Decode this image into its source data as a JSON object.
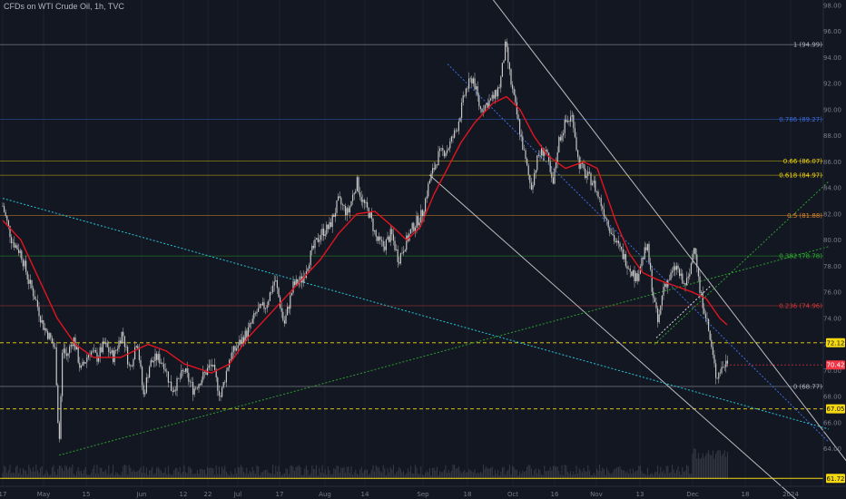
{
  "header": {
    "title": "CFDs on WTI Crude Oil, 1h, TVC"
  },
  "colors": {
    "background": "#131722",
    "grid": "#1e222d",
    "candle": "#c8c8c8",
    "ema": "#e0151f",
    "channel": "#d9d9d9",
    "fib_line": "#787b86",
    "cyan_trend": "#26c6da",
    "green_trend": "#2e9e2e",
    "price_badge": "#f23645",
    "level_badge": "#f5d80f"
  },
  "chart_data": {
    "type": "line",
    "title": "CFDs on WTI Crude Oil, 1h, TVC",
    "xlabel": "",
    "ylabel": "",
    "grid": false,
    "y_axis_position": "right",
    "ylim": [
      61.0,
      99.0
    ],
    "y_ticks": [
      64,
      66,
      68,
      70,
      72,
      74,
      76,
      78,
      80,
      82,
      84,
      86,
      88,
      90,
      92,
      94,
      96,
      98
    ],
    "x_ticks": [
      {
        "label": "17",
        "t": 0
      },
      {
        "label": "May",
        "t": 45
      },
      {
        "label": "15",
        "t": 92
      },
      {
        "label": "Jun",
        "t": 153
      },
      {
        "label": "12",
        "t": 199
      },
      {
        "label": "22",
        "t": 226
      },
      {
        "label": "Jul",
        "t": 259
      },
      {
        "label": "17",
        "t": 305
      },
      {
        "label": "Aug",
        "t": 355
      },
      {
        "label": "14",
        "t": 399
      },
      {
        "label": "Sep",
        "t": 463
      },
      {
        "label": "18",
        "t": 512
      },
      {
        "label": "Oct",
        "t": 562
      },
      {
        "label": "16",
        "t": 608
      },
      {
        "label": "Nov",
        "t": 654
      },
      {
        "label": "13",
        "t": 702
      },
      {
        "label": "Dec",
        "t": 760
      },
      {
        "label": "18",
        "t": 818
      },
      {
        "label": "2024",
        "t": 868
      }
    ],
    "series": [
      {
        "type": "candlestick",
        "values": [
          [
            0,
            82.6
          ],
          [
            10,
            80.0
          ],
          [
            20,
            79.0
          ],
          [
            28,
            77.0
          ],
          [
            36,
            75.5
          ],
          [
            44,
            73.5
          ],
          [
            52,
            72.5
          ],
          [
            58,
            71.5
          ],
          [
            62,
            64.0
          ],
          [
            66,
            72.0
          ],
          [
            70,
            71.0
          ],
          [
            78,
            72.5
          ],
          [
            86,
            70.0
          ],
          [
            96,
            71.5
          ],
          [
            104,
            71.0
          ],
          [
            112,
            72.0
          ],
          [
            122,
            71.0
          ],
          [
            132,
            73.0
          ],
          [
            140,
            70.0
          ],
          [
            148,
            72.5
          ],
          [
            155,
            68.0
          ],
          [
            162,
            70.5
          ],
          [
            170,
            71.0
          ],
          [
            178,
            70.5
          ],
          [
            186,
            68.5
          ],
          [
            192,
            69.0
          ],
          [
            200,
            70.0
          ],
          [
            210,
            68.5
          ],
          [
            220,
            69.5
          ],
          [
            230,
            70.5
          ],
          [
            240,
            68.0
          ],
          [
            250,
            71.0
          ],
          [
            260,
            72.0
          ],
          [
            270,
            73.0
          ],
          [
            280,
            74.5
          ],
          [
            290,
            75.0
          ],
          [
            300,
            77.0
          ],
          [
            310,
            73.5
          ],
          [
            320,
            76.5
          ],
          [
            330,
            77.0
          ],
          [
            340,
            79.0
          ],
          [
            350,
            80.5
          ],
          [
            360,
            81.0
          ],
          [
            370,
            83.0
          ],
          [
            380,
            82.0
          ],
          [
            390,
            84.5
          ],
          [
            396,
            83.0
          ],
          [
            404,
            82.0
          ],
          [
            412,
            80.0
          ],
          [
            420,
            79.5
          ],
          [
            428,
            80.5
          ],
          [
            436,
            78.5
          ],
          [
            442,
            79.5
          ],
          [
            452,
            81.0
          ],
          [
            462,
            82.0
          ],
          [
            470,
            84.5
          ],
          [
            480,
            86.5
          ],
          [
            490,
            87.0
          ],
          [
            500,
            88.5
          ],
          [
            510,
            91.5
          ],
          [
            518,
            92.5
          ],
          [
            526,
            90.0
          ],
          [
            534,
            90.5
          ],
          [
            542,
            91.0
          ],
          [
            548,
            92.0
          ],
          [
            554,
            95.0
          ],
          [
            560,
            92.0
          ],
          [
            568,
            89.0
          ],
          [
            576,
            86.0
          ],
          [
            582,
            84.0
          ],
          [
            590,
            86.5
          ],
          [
            598,
            87.0
          ],
          [
            606,
            84.0
          ],
          [
            612,
            87.5
          ],
          [
            620,
            89.0
          ],
          [
            628,
            89.5
          ],
          [
            634,
            86.0
          ],
          [
            642,
            85.0
          ],
          [
            650,
            84.5
          ],
          [
            658,
            83.0
          ],
          [
            666,
            81.5
          ],
          [
            674,
            80.0
          ],
          [
            682,
            79.0
          ],
          [
            690,
            78.0
          ],
          [
            698,
            77.0
          ],
          [
            704,
            78.5
          ],
          [
            710,
            79.5
          ],
          [
            716,
            76.0
          ],
          [
            722,
            73.5
          ],
          [
            728,
            76.5
          ],
          [
            734,
            77.0
          ],
          [
            742,
            78.0
          ],
          [
            750,
            76.5
          ],
          [
            756,
            77.0
          ],
          [
            762,
            80.0
          ],
          [
            768,
            76.0
          ],
          [
            774,
            74.5
          ],
          [
            780,
            72.0
          ],
          [
            786,
            69.5
          ],
          [
            790,
            70.0
          ],
          [
            796,
            70.5
          ],
          [
            800,
            71.0
          ]
        ]
      },
      {
        "name": "",
        "type": "ema",
        "values": [
          [
            0,
            81.5
          ],
          [
            20,
            80.0
          ],
          [
            40,
            77.0
          ],
          [
            60,
            74.0
          ],
          [
            80,
            72.0
          ],
          [
            100,
            71.0
          ],
          [
            130,
            71.0
          ],
          [
            160,
            72.0
          ],
          [
            180,
            71.5
          ],
          [
            200,
            70.5
          ],
          [
            230,
            69.8
          ],
          [
            250,
            70.5
          ],
          [
            270,
            72.5
          ],
          [
            290,
            74.0
          ],
          [
            310,
            75.5
          ],
          [
            330,
            77.0
          ],
          [
            350,
            78.5
          ],
          [
            370,
            80.5
          ],
          [
            390,
            82.0
          ],
          [
            410,
            82.2
          ],
          [
            430,
            81.0
          ],
          [
            445,
            80.0
          ],
          [
            460,
            81.0
          ],
          [
            475,
            83.5
          ],
          [
            490,
            85.5
          ],
          [
            505,
            87.5
          ],
          [
            520,
            89.0
          ],
          [
            540,
            90.5
          ],
          [
            555,
            91.0
          ],
          [
            570,
            90.0
          ],
          [
            585,
            88.0
          ],
          [
            600,
            86.5
          ],
          [
            620,
            85.5
          ],
          [
            640,
            86.0
          ],
          [
            655,
            85.5
          ],
          [
            665,
            83.5
          ],
          [
            675,
            81.5
          ],
          [
            690,
            79.0
          ],
          [
            705,
            77.5
          ],
          [
            720,
            77.0
          ],
          [
            740,
            76.5
          ],
          [
            760,
            76.0
          ],
          [
            775,
            75.5
          ],
          [
            790,
            74.0
          ],
          [
            798,
            73.5
          ]
        ]
      }
    ],
    "fib_levels": [
      {
        "label": "1 (94.99)",
        "price": 94.99,
        "color": "#b2b5be"
      },
      {
        "label": "0.786 (89.27)",
        "price": 89.27,
        "color": "#3a6ee0"
      },
      {
        "label": "0.66 (86.07)",
        "price": 86.07,
        "color": "#f5d80f"
      },
      {
        "label": "0.618 (84.97)",
        "price": 84.97,
        "color": "#f5d80f"
      },
      {
        "label": "0.5 (81.88)",
        "price": 81.88,
        "color": "#e08a2b"
      },
      {
        "label": "0.382 (78.78)",
        "price": 78.78,
        "color": "#2eb82e"
      },
      {
        "label": "0.236 (74.96)",
        "price": 74.96,
        "color": "#d83838"
      },
      {
        "label": "0 (68.77)",
        "price": 68.77,
        "color": "#b2b5be"
      }
    ],
    "horizontal_levels": [
      {
        "label": "72.12",
        "price": 72.12,
        "style": "dashed",
        "color": "#f5d80f"
      },
      {
        "label": "67.05",
        "price": 67.05,
        "style": "dashed",
        "color": "#f5d80f"
      },
      {
        "label": "61.72",
        "price": 61.72,
        "style": "solid",
        "color": "#f5d80f"
      }
    ],
    "price_labels": [
      {
        "label": "70.42",
        "price": 70.42,
        "color": "#f23645"
      }
    ],
    "trendlines": [
      {
        "name": "",
        "style": "solid",
        "color": "#d9d9d9",
        "from": [
          490,
          103.0
        ],
        "to": [
          930,
          63.0
        ]
      },
      {
        "name": "",
        "style": "solid",
        "color": "#d9d9d9",
        "from": [
          470,
          85.0
        ],
        "to": [
          884,
          59.5
        ]
      },
      {
        "name": "",
        "style": "dotted",
        "color": "#26c6da",
        "from": [
          0,
          83.2
        ],
        "to": [
          910,
          65.5
        ]
      },
      {
        "name": "",
        "style": "dotted",
        "color": "#2e9e2e",
        "from": [
          62,
          63.5
        ],
        "to": [
          910,
          79.5
        ]
      },
      {
        "name": "",
        "style": "dotted",
        "color": "#2e9e2e",
        "from": [
          718,
          72.0
        ],
        "to": [
          910,
          84.5
        ]
      },
      {
        "name": "",
        "style": "dotted",
        "color": "#3a6ee0",
        "from": [
          490,
          93.5
        ],
        "to": [
          910,
          64.5
        ]
      },
      {
        "name": "",
        "style": "dotted",
        "color": "#d9d9d9",
        "from": [
          720,
          72.5
        ],
        "to": [
          780,
          76.5
        ]
      }
    ]
  }
}
